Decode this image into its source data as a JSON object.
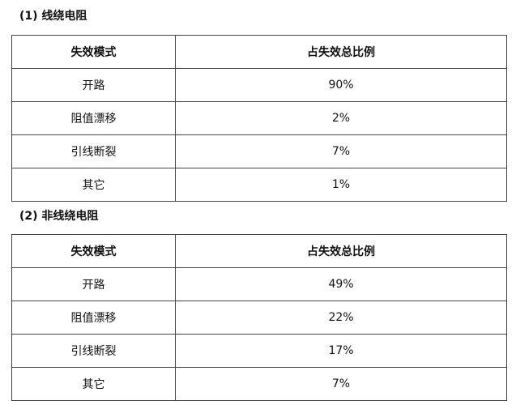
{
  "sections": [
    {
      "title": "(1) 线绕电阻",
      "headers": [
        "失效模式",
        "占失效总比例"
      ],
      "rows": [
        [
          "开路",
          "90%"
        ],
        [
          "阻值漂移",
          "2%"
        ],
        [
          "引线断裂",
          "7%"
        ],
        [
          "其它",
          "1%"
        ]
      ]
    },
    {
      "title": "(2) 非线绕电阻",
      "headers": [
        "失效模式",
        "占失效总比例"
      ],
      "rows": [
        [
          "开路",
          "49%"
        ],
        [
          "阻值漂移",
          "22%"
        ],
        [
          "引线断裂",
          "17%"
        ],
        [
          "其它",
          "7%"
        ]
      ]
    }
  ]
}
